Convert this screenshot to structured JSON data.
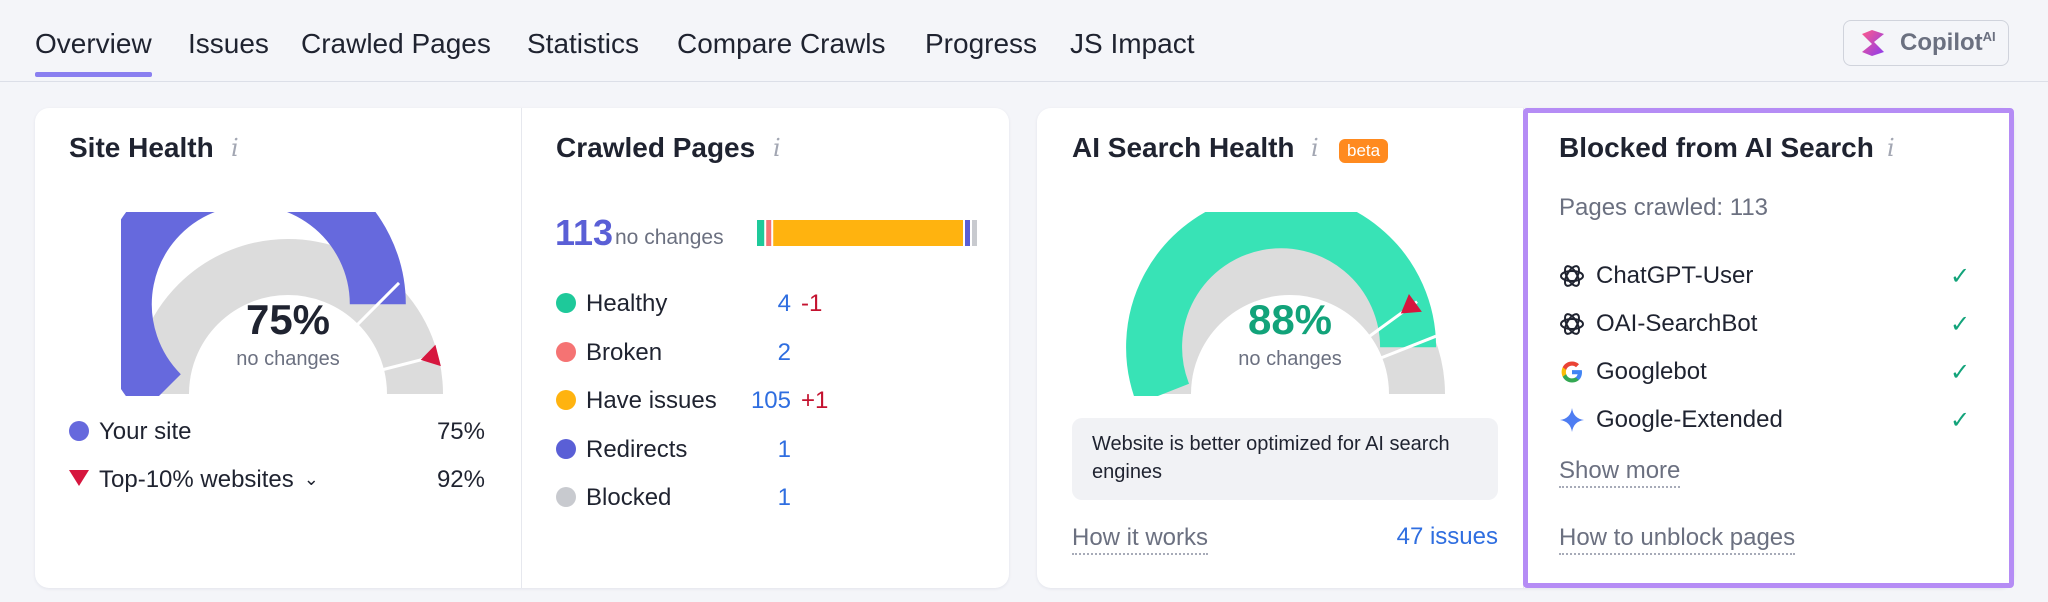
{
  "tabs": [
    {
      "label": "Overview",
      "active": true
    },
    {
      "label": "Issues"
    },
    {
      "label": "Crawled Pages"
    },
    {
      "label": "Statistics"
    },
    {
      "label": "Compare Crawls"
    },
    {
      "label": "Progress"
    },
    {
      "label": "JS Impact"
    }
  ],
  "copilot": {
    "label": "Copilot",
    "sup": "AI"
  },
  "site_health": {
    "title": "Site Health",
    "info": "i",
    "value": "75%",
    "sub": "no changes",
    "gauge_level": 0.75,
    "competitor_level": 0.92,
    "legend": [
      {
        "label": "Your site",
        "value": "75%"
      },
      {
        "label": "Top-10% websites",
        "value": "92%"
      }
    ]
  },
  "crawled_pages": {
    "title": "Crawled Pages",
    "info": "i",
    "total": "113",
    "total_sub": "no changes",
    "rows": [
      {
        "label": "Healthy",
        "value": "4",
        "delta": "-1",
        "color": "#1ec99a",
        "count": 4
      },
      {
        "label": "Broken",
        "value": "2",
        "delta": "",
        "color": "#f57373",
        "count": 2
      },
      {
        "label": "Have issues",
        "value": "105",
        "delta": "+1",
        "color": "#ffb30f",
        "count": 105
      },
      {
        "label": "Redirects",
        "value": "1",
        "delta": "",
        "color": "#5a5fd6",
        "count": 1
      },
      {
        "label": "Blocked",
        "value": "1",
        "delta": "",
        "color": "#c8cacf",
        "count": 1
      }
    ]
  },
  "ai_search_health": {
    "title": "AI Search Health",
    "info": "i",
    "badge": "beta",
    "value": "88%",
    "sub": "no changes",
    "gauge_level": 0.88,
    "marker_level": 0.8,
    "note": "Website is better optimized for AI search engines",
    "how_it_works": "How it works",
    "issues_link": "47 issues"
  },
  "blocked_ai": {
    "title": "Blocked from AI Search",
    "info": "i",
    "pages_crawled": "Pages crawled: 113",
    "bots": [
      {
        "label": "ChatGPT-User",
        "icon": "openai-icon"
      },
      {
        "label": "OAI-SearchBot",
        "icon": "openai-icon"
      },
      {
        "label": "Googlebot",
        "icon": "google-icon"
      },
      {
        "label": "Google-Extended",
        "icon": "gemini-icon"
      }
    ],
    "check": "✓",
    "show_more": "Show more",
    "unblock": "How to unblock pages"
  },
  "colors": {
    "site_gauge": "#6669dd",
    "ai_gauge": "#38e3b6",
    "gauge_track": "#dcdcdc",
    "marker": "#d6163e",
    "highlight": "#b58cf5"
  }
}
